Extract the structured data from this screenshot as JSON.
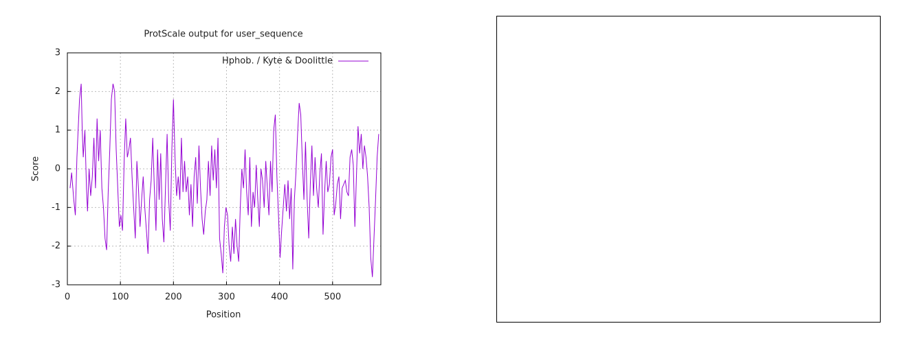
{
  "chart_data": {
    "type": "line",
    "title": "ProtScale output for user_sequence",
    "x_label": "Position",
    "y_label": "Score",
    "x": [
      5,
      8,
      12,
      15,
      18,
      20,
      23,
      26,
      28,
      30,
      33,
      36,
      38,
      41,
      44,
      47,
      50,
      53,
      56,
      59,
      62,
      65,
      68,
      71,
      74,
      77,
      80,
      83,
      86,
      89,
      92,
      95,
      98,
      101,
      104,
      107,
      110,
      113,
      116,
      119,
      122,
      125,
      128,
      131,
      134,
      137,
      140,
      143,
      146,
      149,
      152,
      155,
      158,
      161,
      164,
      167,
      170,
      173,
      176,
      179,
      182,
      185,
      188,
      191,
      194,
      197,
      200,
      203,
      206,
      209,
      212,
      215,
      218,
      221,
      224,
      227,
      230,
      233,
      236,
      239,
      242,
      245,
      248,
      251,
      254,
      257,
      260,
      263,
      266,
      269,
      272,
      275,
      278,
      281,
      284,
      287,
      290,
      293,
      296,
      299,
      302,
      305,
      308,
      311,
      314,
      317,
      320,
      323,
      326,
      329,
      332,
      335,
      338,
      341,
      344,
      347,
      350,
      353,
      356,
      359,
      362,
      365,
      368,
      371,
      374,
      377,
      380,
      383,
      386,
      389,
      392,
      395,
      398,
      401,
      404,
      407,
      410,
      413,
      416,
      419,
      422,
      425,
      428,
      431,
      434,
      437,
      440,
      443,
      446,
      449,
      452,
      455,
      458,
      461,
      464,
      467,
      470,
      473,
      476,
      479,
      482,
      485,
      488,
      491,
      494,
      497,
      500,
      503,
      506,
      509,
      512,
      515,
      518,
      521,
      524,
      527,
      530,
      533,
      536,
      539,
      542,
      545,
      548,
      551,
      554,
      557,
      560,
      563,
      566,
      569,
      572,
      575,
      578,
      581,
      584,
      587
    ],
    "series": [
      {
        "name": "Hphob. / Kyte & Doolittle",
        "color": "#9400d3",
        "values": [
          -0.5,
          -0.1,
          -0.8,
          -1.2,
          0.3,
          0.9,
          1.8,
          2.2,
          1.0,
          0.3,
          1.0,
          -0.5,
          -1.1,
          0,
          -0.7,
          -0.2,
          0.8,
          -0.5,
          1.3,
          0.2,
          1.0,
          -0.5,
          -1.0,
          -1.8,
          -2.1,
          -0.6,
          0.5,
          1.8,
          2.2,
          2.0,
          0.5,
          -0.5,
          -1.5,
          -1.2,
          -1.6,
          0.2,
          1.3,
          0.3,
          0.5,
          0.8,
          -0.2,
          -1.0,
          -1.8,
          0.2,
          -0.5,
          -1.5,
          -0.8,
          -0.2,
          -1.0,
          -1.6,
          -2.2,
          -0.8,
          -0.3,
          0.8,
          -0.5,
          -1.6,
          0.5,
          -0.8,
          0.4,
          -1.3,
          -1.9,
          -0.5,
          0.9,
          -0.8,
          -1.6,
          0.5,
          1.8,
          0.3,
          -0.7,
          -0.2,
          -0.8,
          0.8,
          -0.6,
          0.2,
          -0.6,
          -0.2,
          -1.2,
          -0.4,
          -1.5,
          -0.2,
          0.3,
          -0.9,
          0.6,
          -0.5,
          -1.3,
          -1.7,
          -1.1,
          -0.8,
          0.2,
          -0.7,
          0.6,
          -0.3,
          0.5,
          -0.5,
          0.8,
          -1.8,
          -2.2,
          -2.7,
          -1.5,
          -1.0,
          -1.2,
          -2.0,
          -2.4,
          -1.5,
          -2.2,
          -1.3,
          -2.0,
          -2.4,
          -1.0,
          0,
          -0.5,
          0.5,
          -0.6,
          -1.2,
          0.3,
          -1.5,
          -0.6,
          -1.0,
          0.1,
          -0.8,
          -1.5,
          0,
          -0.3,
          -1.0,
          0.2,
          -0.5,
          -1.2,
          0.2,
          -0.6,
          1.0,
          1.4,
          -0.2,
          -1.2,
          -2.3,
          -1.6,
          -1.0,
          -0.4,
          -1.1,
          -0.3,
          -1.3,
          -0.5,
          -2.6,
          -0.8,
          -0.1,
          0.9,
          1.7,
          1.4,
          0.2,
          -0.8,
          0.7,
          -0.8,
          -1.8,
          -0.4,
          0.6,
          -0.7,
          0.3,
          -0.5,
          -1.0,
          -0.1,
          0.4,
          -1.7,
          -0.6,
          0.2,
          -0.6,
          -0.4,
          0.3,
          0.5,
          -1.2,
          -0.9,
          -0.4,
          -0.2,
          -1.3,
          -0.5,
          -0.4,
          -0.3,
          -0.6,
          -0.7,
          0.3,
          0.5,
          0.1,
          -1.5,
          -0.2,
          1.1,
          0.4,
          0.9,
          0.0,
          0.6,
          0.3,
          -0.2,
          -1.0,
          -2.3,
          -2.8,
          -1.8,
          -0.8,
          0.3,
          0.9
        ]
      }
    ],
    "xlim": [
      0,
      591
    ],
    "ylim": [
      -3,
      3
    ],
    "xticks": [
      0,
      100,
      200,
      300,
      400,
      500
    ],
    "yticks": [
      -3,
      -2,
      -1,
      0,
      1,
      2,
      3
    ],
    "grid": true,
    "legend": "top-right"
  }
}
